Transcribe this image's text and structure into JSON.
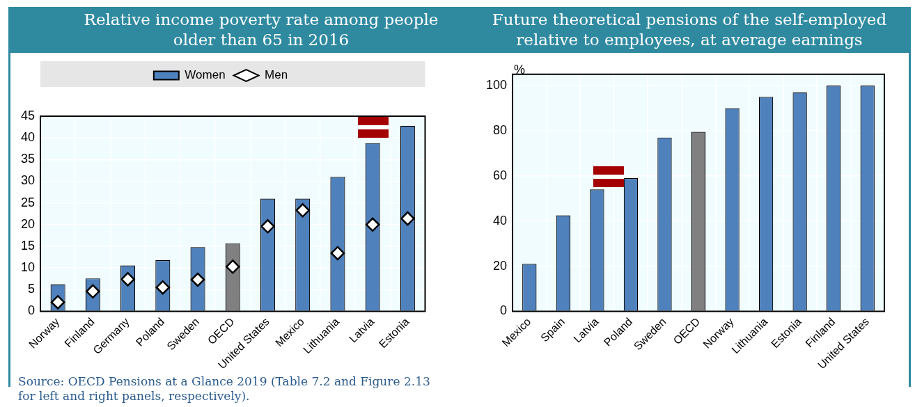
{
  "chart_data": [
    {
      "type": "bar",
      "title": "Relative income poverty rate among people older than 65 in 2016",
      "categories": [
        "Norway",
        "Finland",
        "Germany",
        "Poland",
        "Sweden",
        "OECD",
        "United States",
        "Mexico",
        "Lithuania",
        "Latvia",
        "Estonia"
      ],
      "series": [
        {
          "name": "Women",
          "type": "bar",
          "color": "#4f81bd",
          "colors": [
            "#4f81bd",
            "#4f81bd",
            "#4f81bd",
            "#4f81bd",
            "#4f81bd",
            "#808080",
            "#4f81bd",
            "#4f81bd",
            "#4f81bd",
            "#4f81bd",
            "#4f81bd"
          ],
          "values": [
            6.2,
            7.6,
            10.6,
            11.8,
            14.8,
            15.7,
            26,
            26,
            31,
            38.8,
            42.8
          ]
        },
        {
          "name": "Men",
          "type": "scatter",
          "color": "#ffffff",
          "x": [
            "Norway",
            "Finland",
            "Germany",
            "Poland",
            "Sweden",
            "OECD",
            "United States",
            "Mexico",
            "Lithuania",
            "Latvia",
            "Estonia"
          ],
          "values": [
            2.1,
            4.6,
            7.4,
            5.5,
            7.3,
            10.3,
            19.6,
            23.3,
            13.4,
            20,
            21.4
          ]
        }
      ],
      "ylim": [
        0,
        45
      ],
      "yticks": [
        0,
        5,
        10,
        15,
        20,
        25,
        30,
        35,
        40,
        45
      ],
      "grid": true,
      "legend": "top",
      "marker": "diamond",
      "annotations": [
        "Source: OECD Pensions at a Glance 2019 (Table 7.2 and Figure 2.13 for left and right panels, respectively)."
      ]
    },
    {
      "type": "bar",
      "title": "Future theoretical pensions of the self-employed relative to employees, at average earnings",
      "ylabel": "%",
      "categories": [
        "Mexico",
        "Spain",
        "Latvia",
        "Poland",
        "Sweden",
        "OECD",
        "Norway",
        "Lithuania",
        "Estonia",
        "Finland",
        "United States"
      ],
      "series": [
        {
          "color": "#4f81bd",
          "colors": [
            "#4f81bd",
            "#4f81bd",
            "#4f81bd",
            "#4f81bd",
            "#4f81bd",
            "#808080",
            "#4f81bd",
            "#4f81bd",
            "#4f81bd",
            "#4f81bd",
            "#4f81bd"
          ],
          "values": [
            21,
            42.5,
            54,
            59,
            77,
            79.5,
            90,
            95,
            97,
            100,
            100
          ]
        }
      ],
      "ylim": [
        0,
        105
      ],
      "yticks": [
        0,
        20,
        40,
        60,
        80,
        100
      ],
      "grid": true
    }
  ]
}
